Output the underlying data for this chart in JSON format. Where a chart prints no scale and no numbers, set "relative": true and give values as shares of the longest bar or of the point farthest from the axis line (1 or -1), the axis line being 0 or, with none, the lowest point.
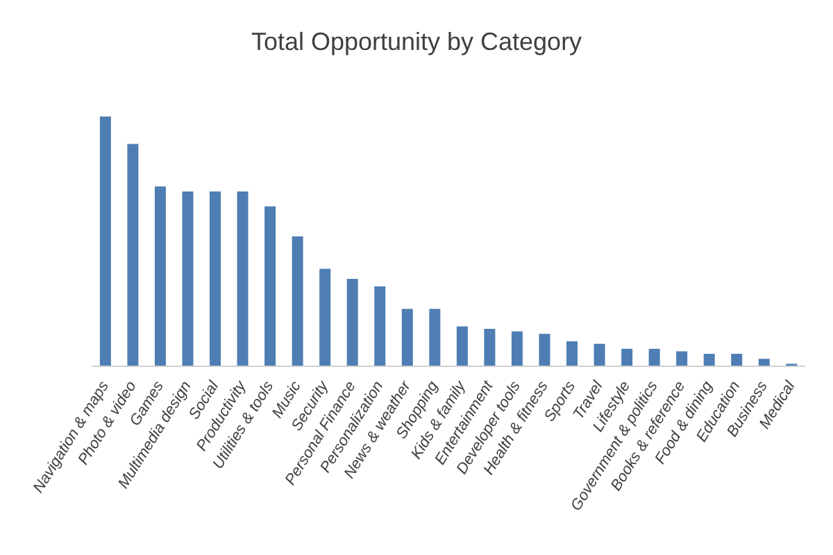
{
  "chart_data": {
    "type": "bar",
    "title": "Total Opportunity by Category",
    "relative": true,
    "color": "#4e7eb3",
    "categories": [
      "Navigation & maps",
      "Photo & video",
      "Games",
      "Multimedia design",
      "Social",
      "Productivity",
      "Utilities & tools",
      "Music",
      "Security",
      "Personal Finance",
      "Personalization",
      "News & weather",
      "Shopping",
      "Kids & family",
      "Entertainment",
      "Developer tools",
      "Health & fitness",
      "Sports",
      "Travel",
      "Lifestyle",
      "Government & politics",
      "Books & reference",
      "Food & dining",
      "Education",
      "Business",
      "Medical"
    ],
    "values": [
      1,
      0.89,
      0.72,
      0.7,
      0.7,
      0.7,
      0.64,
      0.52,
      0.39,
      0.35,
      0.32,
      0.23,
      0.23,
      0.16,
      0.15,
      0.14,
      0.13,
      0.1,
      0.09,
      0.07,
      0.07,
      0.06,
      0.05,
      0.05,
      0.03,
      0.01
    ]
  }
}
